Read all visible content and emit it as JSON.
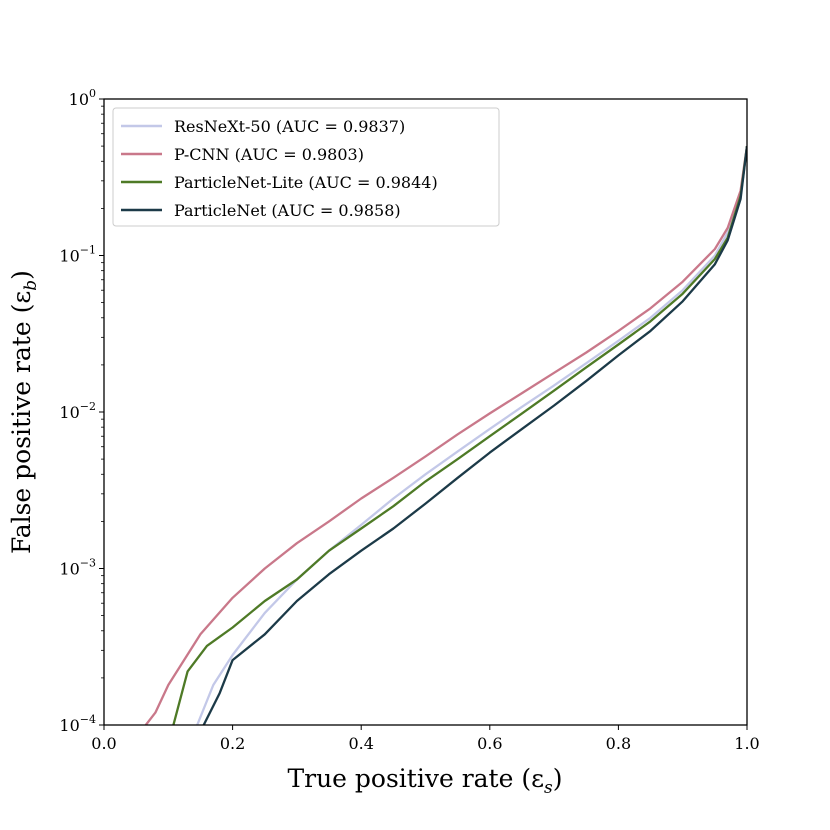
{
  "chart_data": {
    "type": "line",
    "title": "",
    "xlabel": "True positive rate (ε",
    "xlabel_sub": "s",
    "xlabel_close": ")",
    "ylabel": "False positive rate (ε",
    "ylabel_sub": "b",
    "ylabel_close": ")",
    "xlim": [
      0.0,
      1.0
    ],
    "ylim": [
      0.0001,
      1
    ],
    "yscale": "log",
    "x_ticks": [
      0.0,
      0.2,
      0.4,
      0.6,
      0.8,
      1.0
    ],
    "x_tick_labels": [
      "0.0",
      "0.2",
      "0.4",
      "0.6",
      "0.8",
      "1.0"
    ],
    "y_ticks": [
      {
        "value": 0.0001,
        "base": "10",
        "exp": "−4"
      },
      {
        "value": 0.001,
        "base": "10",
        "exp": "−3"
      },
      {
        "value": 0.01,
        "base": "10",
        "exp": "−2"
      },
      {
        "value": 0.1,
        "base": "10",
        "exp": "−1"
      },
      {
        "value": 1,
        "base": "10",
        "exp": "0"
      }
    ],
    "legend_position": "upper-left",
    "series": [
      {
        "name": "ResNeXt-50 (AUC = 0.9837)",
        "color": "#c3c8e8",
        "x": [
          0.145,
          0.17,
          0.2,
          0.25,
          0.3,
          0.35,
          0.4,
          0.45,
          0.5,
          0.55,
          0.6,
          0.65,
          0.7,
          0.75,
          0.8,
          0.85,
          0.9,
          0.95,
          0.97,
          0.99,
          1.0
        ],
        "y": [
          0.0001,
          0.00018,
          0.00028,
          0.00052,
          0.00085,
          0.0013,
          0.0019,
          0.0028,
          0.004,
          0.0056,
          0.0078,
          0.0108,
          0.0148,
          0.0205,
          0.0285,
          0.04,
          0.06,
          0.1,
          0.14,
          0.25,
          0.5
        ]
      },
      {
        "name": "P-CNN (AUC = 0.9803)",
        "color": "#c9788a",
        "x": [
          0.065,
          0.08,
          0.1,
          0.15,
          0.2,
          0.25,
          0.3,
          0.35,
          0.4,
          0.45,
          0.5,
          0.55,
          0.6,
          0.65,
          0.7,
          0.75,
          0.8,
          0.85,
          0.9,
          0.95,
          0.97,
          0.99,
          1.0
        ],
        "y": [
          0.0001,
          0.00012,
          0.00018,
          0.00038,
          0.00065,
          0.001,
          0.00145,
          0.002,
          0.0028,
          0.0038,
          0.0052,
          0.0072,
          0.0098,
          0.0132,
          0.0178,
          0.024,
          0.033,
          0.046,
          0.068,
          0.11,
          0.15,
          0.26,
          0.5
        ]
      },
      {
        "name": "ParticleNet-Lite (AUC = 0.9844)",
        "color": "#4e7a26",
        "x": [
          0.108,
          0.13,
          0.16,
          0.2,
          0.25,
          0.3,
          0.35,
          0.4,
          0.45,
          0.5,
          0.55,
          0.6,
          0.65,
          0.7,
          0.75,
          0.8,
          0.85,
          0.9,
          0.95,
          0.97,
          0.99,
          1.0
        ],
        "y": [
          0.0001,
          0.00022,
          0.00032,
          0.00042,
          0.00062,
          0.00085,
          0.0013,
          0.0018,
          0.0025,
          0.0036,
          0.005,
          0.007,
          0.0098,
          0.0137,
          0.0193,
          0.027,
          0.038,
          0.057,
          0.095,
          0.13,
          0.24,
          0.5
        ]
      },
      {
        "name": "ParticleNet (AUC = 0.9858)",
        "color": "#1c3a48",
        "x": [
          0.155,
          0.18,
          0.2,
          0.25,
          0.3,
          0.35,
          0.4,
          0.45,
          0.5,
          0.55,
          0.6,
          0.65,
          0.7,
          0.75,
          0.8,
          0.85,
          0.9,
          0.95,
          0.97,
          0.99,
          1.0
        ],
        "y": [
          0.0001,
          0.00016,
          0.00026,
          0.00038,
          0.00062,
          0.00092,
          0.0013,
          0.0018,
          0.0026,
          0.0038,
          0.0055,
          0.0078,
          0.011,
          0.0158,
          0.023,
          0.033,
          0.051,
          0.088,
          0.125,
          0.23,
          0.5
        ]
      }
    ]
  }
}
